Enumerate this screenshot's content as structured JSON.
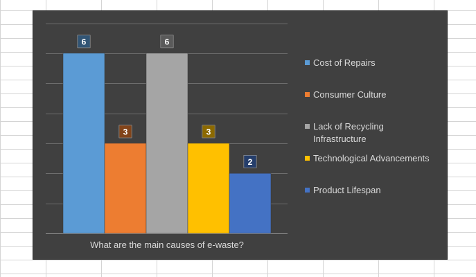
{
  "chart_data": {
    "type": "bar",
    "xlabel": "What are the main causes of e-waste?",
    "ylim": [
      0,
      7
    ],
    "grid": true,
    "legend_position": "right",
    "series": [
      {
        "name": "Cost of Repairs",
        "value": 6,
        "color": "#5b9bd5"
      },
      {
        "name": "Consumer Culture",
        "value": 3,
        "color": "#ed7d31"
      },
      {
        "name": "Lack of Recycling Infrastructure",
        "value": 6,
        "color": "#a5a5a5"
      },
      {
        "name": "Technological Advancements",
        "value": 3,
        "color": "#ffc000"
      },
      {
        "name": "Product Lifespan",
        "value": 2,
        "color": "#4472c4"
      }
    ]
  }
}
